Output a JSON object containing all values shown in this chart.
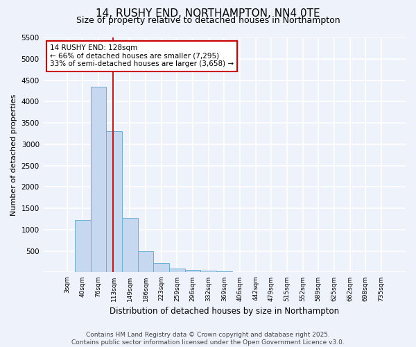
{
  "title": "14, RUSHY END, NORTHAMPTON, NN4 0TE",
  "subtitle": "Size of property relative to detached houses in Northampton",
  "xlabel": "Distribution of detached houses by size in Northampton",
  "ylabel": "Number of detached properties",
  "categories": [
    "3sqm",
    "40sqm",
    "76sqm",
    "113sqm",
    "149sqm",
    "186sqm",
    "223sqm",
    "259sqm",
    "296sqm",
    "332sqm",
    "369sqm",
    "406sqm",
    "442sqm",
    "479sqm",
    "515sqm",
    "552sqm",
    "589sqm",
    "625sqm",
    "662sqm",
    "698sqm",
    "735sqm"
  ],
  "bar_values": [
    0,
    1230,
    4350,
    3300,
    1280,
    500,
    215,
    85,
    55,
    40,
    30,
    0,
    0,
    0,
    0,
    0,
    0,
    0,
    0,
    0,
    0
  ],
  "bar_color": "#c5d8f0",
  "bar_edge_color": "#6aaed6",
  "vline_color": "#cc0000",
  "annotation_text": "14 RUSHY END: 128sqm\n← 66% of detached houses are smaller (7,295)\n33% of semi-detached houses are larger (3,658) →",
  "annotation_box_color": "#ffffff",
  "annotation_box_edge": "#cc0000",
  "ylim": [
    0,
    5500
  ],
  "yticks": [
    0,
    500,
    1000,
    1500,
    2000,
    2500,
    3000,
    3500,
    4000,
    4500,
    5000,
    5500
  ],
  "footer_line1": "Contains HM Land Registry data © Crown copyright and database right 2025.",
  "footer_line2": "Contains public sector information licensed under the Open Government Licence v3.0.",
  "bg_color": "#eef2fb",
  "grid_color": "#ffffff",
  "title_fontsize": 11,
  "subtitle_fontsize": 9,
  "annotation_fontsize": 7.5,
  "footer_fontsize": 6.5,
  "ylabel_fontsize": 8,
  "xlabel_fontsize": 8.5
}
